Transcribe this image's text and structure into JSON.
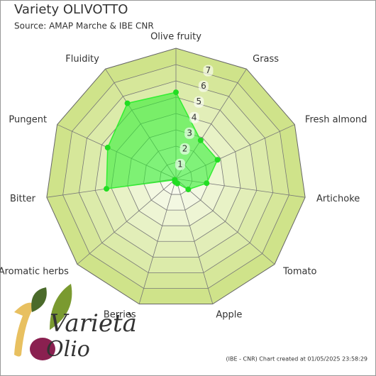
{
  "chart_data": {
    "type": "radar",
    "title": "Variety OLIVOTTO",
    "subtitle": "Source: AMAP Marche & IBE CNR",
    "footer": "(IBE - CNR) Chart created at 01/05/2025 23:58:29",
    "logo": {
      "top": "Varietà",
      "bottom": "Olio"
    },
    "categories": [
      "Olive fruity",
      "Grass",
      "Fresh almond",
      "Artichoke",
      "Tomato",
      "Apple",
      "Berries",
      "Aromatic herbs",
      "Bitter",
      "Pungent",
      "Fluidity"
    ],
    "values": [
      5.3,
      2.8,
      2.8,
      1.9,
      1.0,
      0.3,
      0.2,
      0.1,
      4.3,
      4.6,
      5.5
    ],
    "color": "#33ee33",
    "ylim": [
      0,
      8
    ],
    "yticks": [
      1,
      2,
      3,
      4,
      5,
      6,
      7
    ]
  }
}
